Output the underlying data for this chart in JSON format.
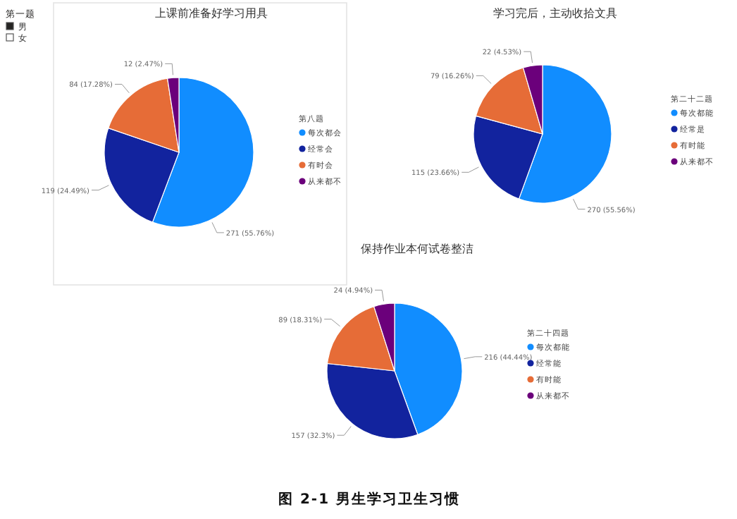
{
  "chart_data": [
    {
      "type": "other",
      "title": "第一题",
      "categories": [
        "男",
        "女"
      ],
      "colors": [
        "#252423",
        "#ffffff"
      ]
    },
    {
      "type": "pie",
      "title": "上课前准备好学习用具",
      "legend_title": "第八题",
      "legend": "right",
      "categories": [
        "每次都会",
        "经常会",
        "有时会",
        "从来都不"
      ],
      "values": [
        271,
        119,
        84,
        12
      ],
      "value_labels": [
        "271 (55.76%)",
        "119 (24.49%)",
        "84 (17.28%)",
        "12 (2.47%)"
      ],
      "colors": [
        "#118dff",
        "#12239e",
        "#e66c37",
        "#6b007b"
      ]
    },
    {
      "type": "pie",
      "title": "学习完后，主动收拾文具",
      "legend_title": "第二十二题",
      "legend": "right",
      "categories": [
        "每次都能",
        "经常是",
        "有时能",
        "从来都不"
      ],
      "values": [
        270,
        115,
        79,
        22
      ],
      "value_labels": [
        "270 (55.56%)",
        "115 (23.66%)",
        "79 (16.26%)",
        "22 (4.53%)"
      ],
      "colors": [
        "#118dff",
        "#12239e",
        "#e66c37",
        "#6b007b"
      ]
    },
    {
      "type": "pie",
      "title": "保持作业本何试卷整洁",
      "legend_title": "第二十四题",
      "legend": "right",
      "categories": [
        "每次都能",
        "经常能",
        "有时能",
        "从来都不"
      ],
      "values": [
        216,
        157,
        89,
        24
      ],
      "value_labels": [
        "216 (44.44%)",
        "157 (32.3%)",
        "89 (18.31%)",
        "24 (4.94%)"
      ],
      "colors": [
        "#118dff",
        "#12239e",
        "#e66c37",
        "#6b007b"
      ],
      "annotations": [
        "图 2-1  男生学习卫生习惯"
      ]
    }
  ]
}
